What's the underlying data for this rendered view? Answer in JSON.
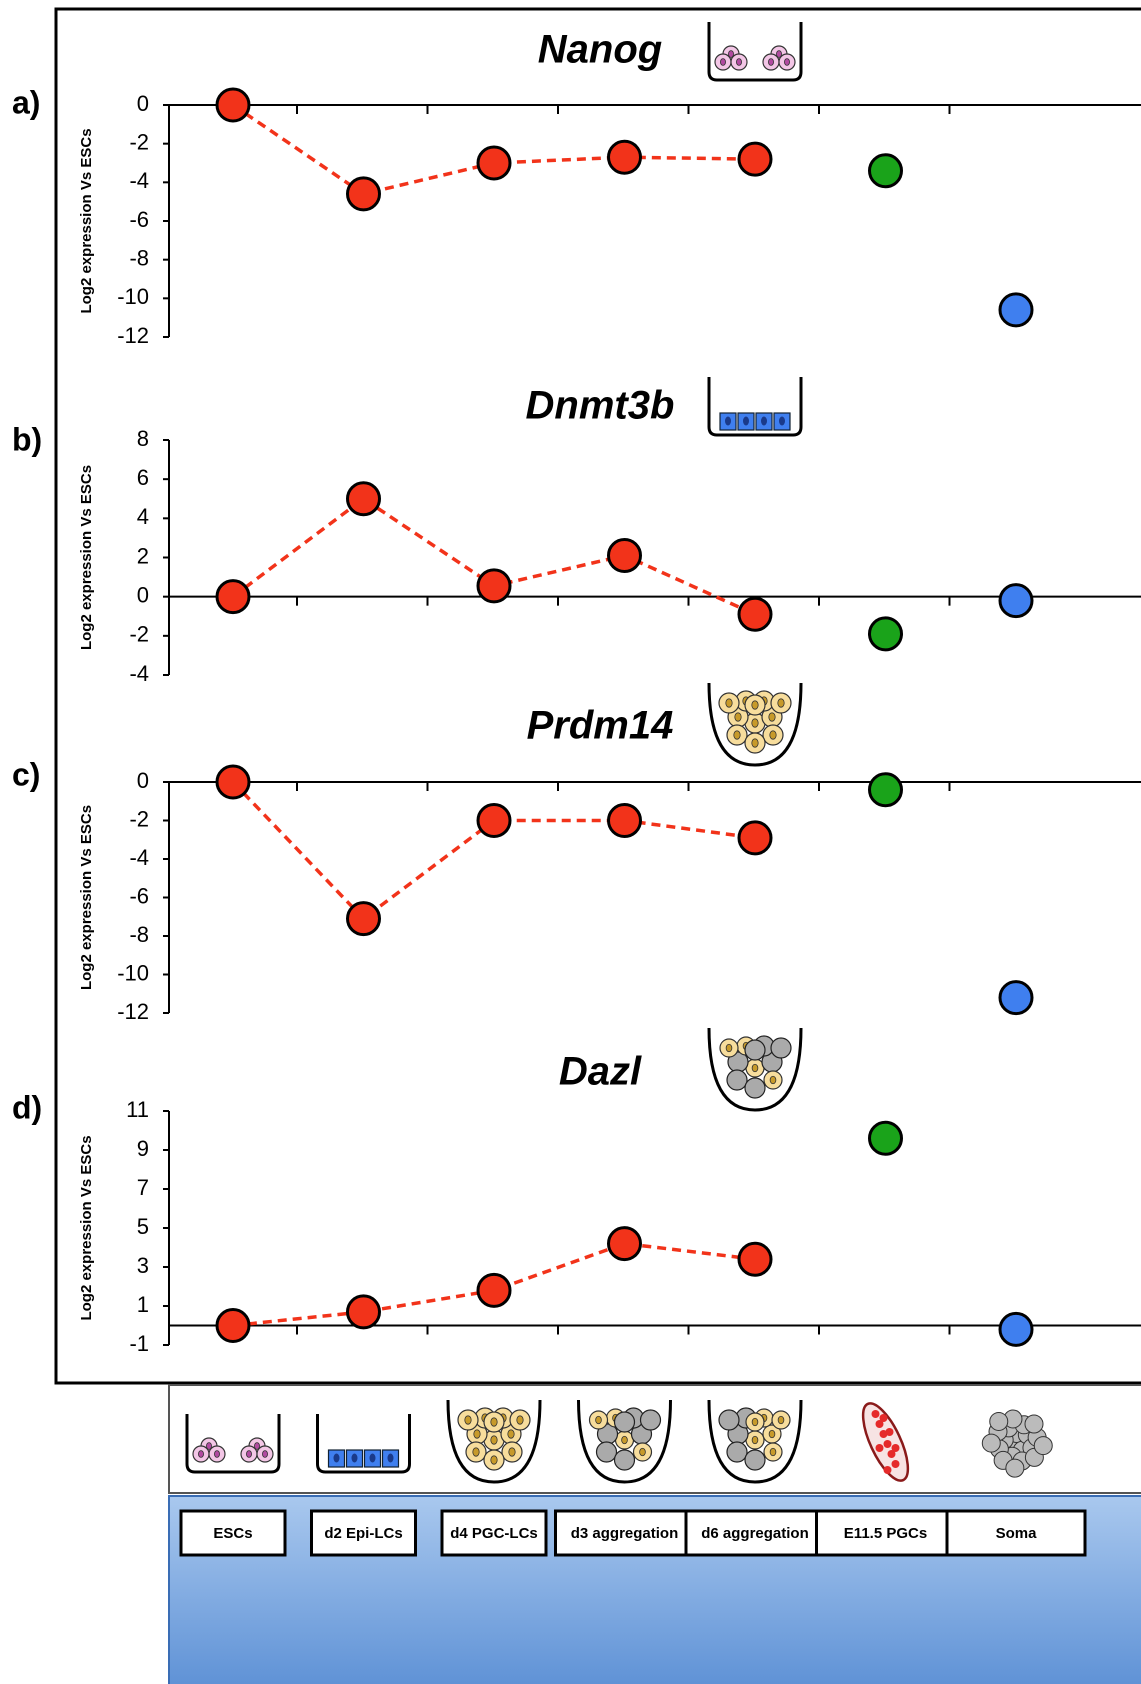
{
  "categories": [
    "ESCs",
    "d2 Epi-LCs",
    "d4 PGC-LCs",
    "d3 aggregation",
    "d6 aggregation",
    "E11.5 PGCs",
    "Soma"
  ],
  "chart_data": [
    {
      "type": "line",
      "panel": "a)",
      "title": "Nanog",
      "y_label": "Log2 expression Vs ESCs",
      "ylim": [
        -12,
        0
      ],
      "yticks": [
        0,
        -2,
        -4,
        -6,
        -8,
        -10,
        -12
      ],
      "series": [
        {
          "color": "#f2331a",
          "line": true,
          "values": [
            0,
            -4.6,
            -3.0,
            -2.7,
            -2.8,
            null,
            null
          ]
        },
        {
          "color": "#1aa31a",
          "line": false,
          "values": [
            null,
            null,
            null,
            null,
            null,
            -3.4,
            null
          ]
        },
        {
          "color": "#3f7fef",
          "line": false,
          "values": [
            null,
            null,
            null,
            null,
            null,
            null,
            -10.6
          ]
        }
      ]
    },
    {
      "type": "line",
      "panel": "b)",
      "title": "Dnmt3b",
      "y_label": "Log2 expression Vs ESCs",
      "ylim": [
        -4,
        8
      ],
      "yticks": [
        8,
        6,
        4,
        2,
        0,
        -2,
        -4
      ],
      "series": [
        {
          "color": "#f2331a",
          "line": true,
          "values": [
            0,
            5.0,
            0.55,
            2.1,
            -0.9,
            null,
            null
          ]
        },
        {
          "color": "#1aa31a",
          "line": false,
          "values": [
            null,
            null,
            null,
            null,
            null,
            -1.9,
            null
          ]
        },
        {
          "color": "#3f7fef",
          "line": false,
          "values": [
            null,
            null,
            null,
            null,
            null,
            null,
            -0.2
          ]
        }
      ]
    },
    {
      "type": "line",
      "panel": "c)",
      "title": "Prdm14",
      "y_label": "Log2 expression Vs ESCs",
      "ylim": [
        -12,
        0
      ],
      "yticks": [
        0,
        -2,
        -4,
        -6,
        -8,
        -10,
        -12
      ],
      "series": [
        {
          "color": "#f2331a",
          "line": true,
          "values": [
            0,
            -7.1,
            -2.0,
            -2.0,
            -2.9,
            null,
            null
          ]
        },
        {
          "color": "#1aa31a",
          "line": false,
          "values": [
            null,
            null,
            null,
            null,
            null,
            -0.4,
            null
          ]
        },
        {
          "color": "#3f7fef",
          "line": false,
          "values": [
            null,
            null,
            null,
            null,
            null,
            null,
            -11.2
          ]
        }
      ]
    },
    {
      "type": "line",
      "panel": "d)",
      "title": "Dazl",
      "y_label": "Log2 expression Vs ESCs",
      "ylim": [
        -1,
        11
      ],
      "yticks": [
        11,
        9,
        7,
        5,
        3,
        1,
        -1
      ],
      "series": [
        {
          "color": "#f2331a",
          "line": true,
          "values": [
            0,
            0.7,
            1.8,
            4.2,
            3.4,
            null,
            null
          ]
        },
        {
          "color": "#1aa31a",
          "line": false,
          "values": [
            null,
            null,
            null,
            null,
            null,
            9.6,
            null
          ]
        },
        {
          "color": "#3f7fef",
          "line": false,
          "values": [
            null,
            null,
            null,
            null,
            null,
            null,
            -0.2
          ]
        }
      ]
    }
  ]
}
